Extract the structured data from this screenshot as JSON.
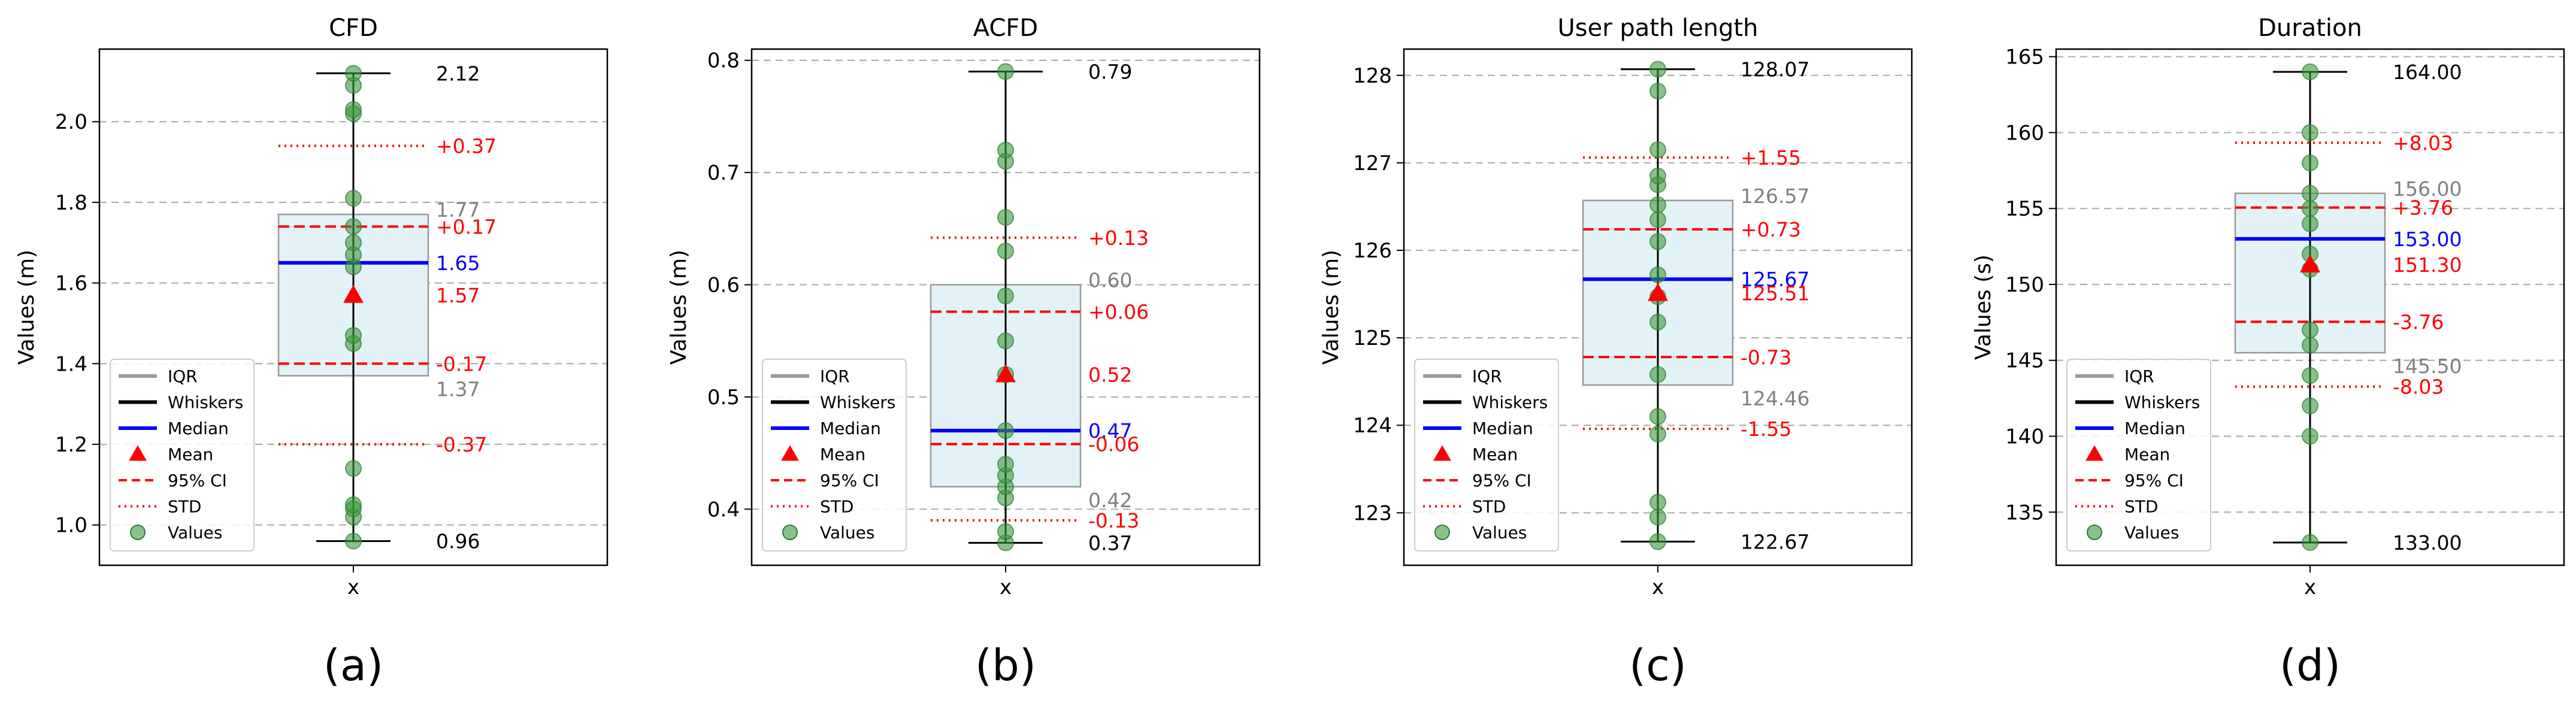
{
  "legend_labels": {
    "iqr": "IQR",
    "whiskers": "Whiskers",
    "median": "Median",
    "mean": "Mean",
    "ci": "95% CI",
    "std": "STD",
    "values": "Values"
  },
  "colors": {
    "box_fill": "#e3f2f6",
    "box_edge": "#999999",
    "whisker": "#000000",
    "median": "#0000ff",
    "mean": "#ff0000",
    "ci": "#ff0000",
    "std": "#ff0000",
    "points": "#3a9a3a",
    "grid": "#b0b0b0",
    "iqr_label": "#808080",
    "whisker_label": "#000000"
  },
  "chart_data": [
    {
      "type": "box",
      "panel_label": "(a)",
      "title": "CFD",
      "xlabel": "x",
      "ylabel": "Values (m)",
      "ylim": [
        0.9,
        2.18
      ],
      "yticks": [
        1.0,
        1.2,
        1.4,
        1.6,
        1.8,
        2.0
      ],
      "ytick_labels": [
        "1.0",
        "1.2",
        "1.4",
        "1.6",
        "1.8",
        "2.0"
      ],
      "whisker_low": 0.96,
      "whisker_high": 2.12,
      "q1": 1.37,
      "q3": 1.77,
      "median": 1.65,
      "mean": 1.57,
      "ci_low": 1.4,
      "ci_high": 1.74,
      "std_low": 1.2,
      "std_high": 1.94,
      "values": [
        0.96,
        1.02,
        1.04,
        1.05,
        1.14,
        1.45,
        1.47,
        1.64,
        1.67,
        1.7,
        1.74,
        1.81,
        2.02,
        2.03,
        2.09,
        2.12
      ],
      "labels": {
        "whisker_high": "2.12",
        "whisker_low": "0.96",
        "q3": "1.77",
        "q1": "1.37",
        "median": "1.65",
        "mean": "1.57",
        "ci_high": "+0.17",
        "ci_low": "-0.17",
        "std_high": "+0.37",
        "std_low": "-0.37"
      }
    },
    {
      "type": "box",
      "panel_label": "(b)",
      "title": "ACFD",
      "xlabel": "x",
      "ylabel": "Values (m)",
      "ylim": [
        0.35,
        0.81
      ],
      "yticks": [
        0.4,
        0.5,
        0.6,
        0.7,
        0.8
      ],
      "ytick_labels": [
        "0.4",
        "0.5",
        "0.6",
        "0.7",
        "0.8"
      ],
      "whisker_low": 0.37,
      "whisker_high": 0.79,
      "q1": 0.42,
      "q3": 0.6,
      "median": 0.47,
      "mean": 0.52,
      "ci_low": 0.458,
      "ci_high": 0.576,
      "std_low": 0.39,
      "std_high": 0.642,
      "values": [
        0.37,
        0.38,
        0.41,
        0.42,
        0.43,
        0.44,
        0.47,
        0.52,
        0.55,
        0.59,
        0.63,
        0.66,
        0.71,
        0.72,
        0.79
      ],
      "labels": {
        "whisker_high": "0.79",
        "whisker_low": "0.37",
        "q3": "0.60",
        "q1": "0.42",
        "median": "0.47",
        "mean": "0.52",
        "ci_high": "+0.06",
        "ci_low": "-0.06",
        "std_high": "+0.13",
        "std_low": "-0.13"
      }
    },
    {
      "type": "box",
      "panel_label": "(c)",
      "title": "User path length",
      "xlabel": "x",
      "ylabel": "Values (m)",
      "ylim": [
        122.4,
        128.3
      ],
      "yticks": [
        123,
        124,
        125,
        126,
        127,
        128
      ],
      "ytick_labels": [
        "123",
        "124",
        "125",
        "126",
        "127",
        "128"
      ],
      "whisker_low": 122.67,
      "whisker_high": 128.07,
      "q1": 124.46,
      "q3": 126.57,
      "median": 125.67,
      "mean": 125.51,
      "ci_low": 124.78,
      "ci_high": 126.24,
      "std_low": 123.96,
      "std_high": 127.06,
      "values": [
        122.67,
        122.95,
        123.12,
        123.9,
        124.1,
        124.58,
        125.18,
        125.47,
        125.72,
        126.1,
        126.35,
        126.52,
        126.75,
        126.85,
        127.15,
        127.82,
        128.07
      ],
      "labels": {
        "whisker_high": "128.07",
        "whisker_low": "122.67",
        "q3": "126.57",
        "q1": "124.46",
        "median": "125.67",
        "mean": "125.51",
        "ci_high": "+0.73",
        "ci_low": "-0.73",
        "std_high": "+1.55",
        "std_low": "-1.55"
      }
    },
    {
      "type": "box",
      "panel_label": "(d)",
      "title": "Duration",
      "xlabel": "x",
      "ylabel": "Values (s)",
      "ylim": [
        131.5,
        165.5
      ],
      "yticks": [
        135,
        140,
        145,
        150,
        155,
        160,
        165
      ],
      "ytick_labels": [
        "135",
        "140",
        "145",
        "150",
        "155",
        "160",
        "165"
      ],
      "whisker_low": 133.0,
      "whisker_high": 164.0,
      "q1": 145.5,
      "q3": 156.0,
      "median": 153.0,
      "mean": 151.3,
      "ci_low": 147.54,
      "ci_high": 155.06,
      "std_low": 143.27,
      "std_high": 159.33,
      "values": [
        133,
        140,
        142,
        144,
        146,
        147,
        151,
        152,
        154,
        155,
        156,
        158,
        160,
        164
      ],
      "labels": {
        "whisker_high": "164.00",
        "whisker_low": "133.00",
        "q3": "156.00",
        "q1": "145.50",
        "median": "153.00",
        "mean": "151.30",
        "ci_high": "+3.76",
        "ci_low": "-3.76",
        "std_high": "+8.03",
        "std_low": "-8.03"
      }
    }
  ]
}
